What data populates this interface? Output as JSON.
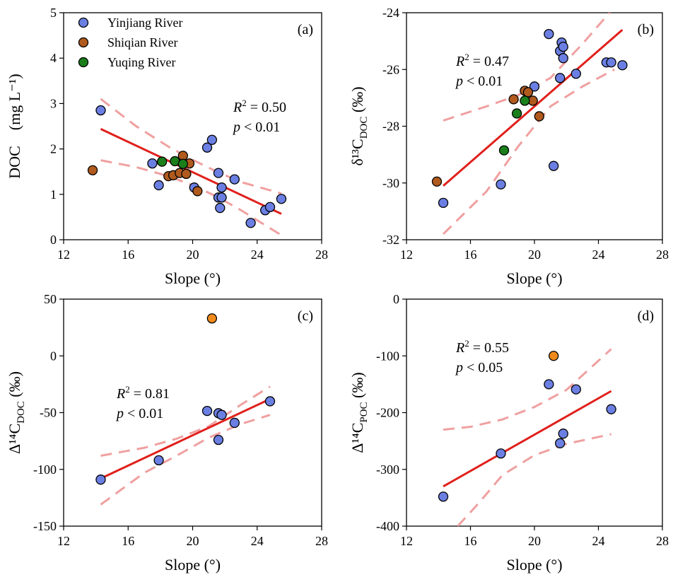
{
  "colors": {
    "yinjiang": "#6b7fe3",
    "shiqian": "#b05a1e",
    "yuqing": "#1a7f1a",
    "outlier": "#f08a1c",
    "fit": "#e0201c",
    "ci": "#f0a0a0"
  },
  "legend": [
    {
      "name": "Yinjiang River",
      "color": "#6b7fe3"
    },
    {
      "name": "Shiqian River",
      "color": "#b05a1e"
    },
    {
      "name": "Yuqing River",
      "color": "#1a7f1a"
    }
  ],
  "panels": [
    {
      "label": "(a)",
      "ylabel": "DOC　(mg L⁻¹)",
      "r2_text": "= 0.50",
      "p_text": "< 0.01",
      "ann_pos": "upper-right"
    },
    {
      "label": "(b)",
      "ylabel": "δ¹³C",
      "ylabel_sub": "DOC",
      "ylabel_unit": "(‰)",
      "r2_text": "= 0.47",
      "p_text": "< 0.01",
      "ann_pos": "upper-left"
    },
    {
      "label": "(c)",
      "ylabel": "Δ¹⁴C",
      "ylabel_sub": "DOC",
      "ylabel_unit": "(‰)",
      "r2_text": "= 0.81",
      "p_text": "< 0.01",
      "ann_pos": "middle-left"
    },
    {
      "label": "(d)",
      "ylabel": "Δ¹⁴C",
      "ylabel_sub": "POC",
      "ylabel_unit": "(‰)",
      "r2_text": "= 0.55",
      "p_text": "< 0.05",
      "ann_pos": "upper-left"
    }
  ],
  "chart_data": [
    {
      "type": "scatter",
      "panel": "(a)",
      "xlabel": "Slope (°)",
      "ylabel": "DOC (mg L-1)",
      "xlim": [
        12,
        28
      ],
      "ylim": [
        0,
        5
      ],
      "xticks": [
        12,
        16,
        20,
        24,
        28
      ],
      "yticks": [
        0,
        1,
        2,
        3,
        4,
        5
      ],
      "series": [
        {
          "name": "Yinjiang River",
          "color": "#6b7fe3",
          "x": [
            14.3,
            17.5,
            17.9,
            20.1,
            20.9,
            21.2,
            21.6,
            21.6,
            21.7,
            21.8,
            21.8,
            22.6,
            23.6,
            24.5,
            24.8,
            25.5
          ],
          "y": [
            2.85,
            1.68,
            1.2,
            1.15,
            2.03,
            2.2,
            1.47,
            0.93,
            0.7,
            1.15,
            0.93,
            1.33,
            0.37,
            0.65,
            0.72,
            0.9
          ]
        },
        {
          "name": "Shiqian River",
          "color": "#b05a1e",
          "x": [
            13.8,
            18.5,
            18.8,
            19.2,
            19.4,
            19.6,
            19.8,
            20.3
          ],
          "y": [
            1.53,
            1.4,
            1.42,
            1.47,
            1.85,
            1.45,
            1.68,
            1.07
          ]
        },
        {
          "name": "Yuqing River",
          "color": "#1a7f1a",
          "x": [
            18.1,
            18.9,
            19.4
          ],
          "y": [
            1.72,
            1.73,
            1.67
          ]
        }
      ],
      "fit": {
        "x": [
          14.3,
          25.5
        ],
        "y": [
          2.44,
          0.57
        ]
      },
      "ci_upper": {
        "x": [
          14.3,
          16.5,
          18.5,
          20,
          21.5,
          23,
          25.5
        ],
        "y": [
          3.1,
          2.5,
          2.05,
          1.76,
          1.5,
          1.27,
          1.02
        ]
      },
      "ci_lower": {
        "x": [
          14.3,
          16.5,
          18.5,
          20,
          21.5,
          23,
          25.5
        ],
        "y": [
          1.75,
          1.6,
          1.4,
          1.2,
          0.95,
          0.65,
          0.1
        ]
      },
      "r2": 0.5,
      "p": "< 0.01"
    },
    {
      "type": "scatter",
      "panel": "(b)",
      "xlabel": "Slope (°)",
      "ylabel": "δ13C DOC (‰)",
      "xlim": [
        12,
        28
      ],
      "ylim": [
        -32,
        -24
      ],
      "xticks": [
        12,
        16,
        20,
        24,
        28
      ],
      "yticks": [
        -32,
        -30,
        -28,
        -26,
        -24
      ],
      "series": [
        {
          "name": "Yinjiang River",
          "color": "#6b7fe3",
          "x": [
            14.3,
            17.9,
            20.0,
            20.9,
            21.2,
            21.6,
            21.6,
            21.7,
            21.8,
            21.8,
            22.6,
            24.5,
            24.8,
            25.5
          ],
          "y": [
            -30.7,
            -30.05,
            -26.6,
            -24.75,
            -29.4,
            -26.3,
            -25.35,
            -25.05,
            -25.6,
            -25.2,
            -26.15,
            -25.75,
            -25.75,
            -25.85
          ]
        },
        {
          "name": "Shiqian River",
          "color": "#b05a1e",
          "x": [
            13.9,
            18.7,
            19.4,
            19.6,
            19.9,
            20.3
          ],
          "y": [
            -29.95,
            -27.05,
            -26.75,
            -26.8,
            -27.1,
            -27.65
          ]
        },
        {
          "name": "Yuqing River",
          "color": "#1a7f1a",
          "x": [
            18.1,
            18.9,
            19.4
          ],
          "y": [
            -28.85,
            -27.55,
            -27.1
          ]
        }
      ],
      "fit": {
        "x": [
          14.3,
          25.5
        ],
        "y": [
          -30.1,
          -24.6
        ]
      },
      "ci_upper": {
        "x": [
          14.3,
          17,
          19,
          21,
          23,
          25
        ],
        "y": [
          -27.8,
          -27.3,
          -26.9,
          -26.3,
          -25.1,
          -23.8
        ]
      },
      "ci_lower": {
        "x": [
          14.3,
          17,
          19,
          21,
          23,
          25
        ],
        "y": [
          -31.8,
          -30.3,
          -28.7,
          -27.3,
          -26.6,
          -26.0
        ]
      },
      "r2": 0.47,
      "p": "< 0.01"
    },
    {
      "type": "scatter",
      "panel": "(c)",
      "xlabel": "Slope (°)",
      "ylabel": "Δ14C DOC (‰)",
      "xlim": [
        12,
        28
      ],
      "ylim": [
        -150,
        50
      ],
      "xticks": [
        12,
        16,
        20,
        24,
        28
      ],
      "yticks": [
        -150,
        -100,
        -50,
        0,
        50
      ],
      "series": [
        {
          "name": "Yinjiang River",
          "color": "#6b7fe3",
          "x": [
            14.3,
            17.9,
            20.9,
            21.6,
            21.6,
            21.8,
            22.6,
            24.8
          ],
          "y": [
            -109,
            -92,
            -48.5,
            -50.5,
            -74,
            -52,
            -59,
            -40
          ]
        },
        {
          "name": "Outlier",
          "color": "#f08a1c",
          "x": [
            21.2
          ],
          "y": [
            33
          ]
        }
      ],
      "fit": {
        "x": [
          14.3,
          24.8
        ],
        "y": [
          -108,
          -38
        ]
      },
      "ci_upper": {
        "x": [
          14.3,
          17,
          19,
          21,
          23,
          24.8
        ],
        "y": [
          -88,
          -81,
          -73,
          -62,
          -43,
          -27
        ]
      },
      "ci_lower": {
        "x": [
          14.3,
          17,
          19,
          21,
          23,
          24.8
        ],
        "y": [
          -131,
          -103,
          -88,
          -72,
          -60,
          -52
        ]
      },
      "r2": 0.81,
      "p": "< 0.01"
    },
    {
      "type": "scatter",
      "panel": "(d)",
      "xlabel": "Slope (°)",
      "ylabel": "Δ14C POC (‰)",
      "xlim": [
        12,
        28
      ],
      "ylim": [
        -400,
        0
      ],
      "xticks": [
        12,
        16,
        20,
        24,
        28
      ],
      "yticks": [
        -400,
        -300,
        -200,
        -100,
        0
      ],
      "series": [
        {
          "name": "Yinjiang River",
          "color": "#6b7fe3",
          "x": [
            14.3,
            17.9,
            20.9,
            21.6,
            21.8,
            22.6,
            24.8
          ],
          "y": [
            -348,
            -272,
            -150,
            -254,
            -237,
            -159,
            -194
          ]
        },
        {
          "name": "Outlier",
          "color": "#f08a1c",
          "x": [
            21.2
          ],
          "y": [
            -100
          ]
        }
      ],
      "fit": {
        "x": [
          14.3,
          24.8
        ],
        "y": [
          -330,
          -162
        ]
      },
      "ci_upper": {
        "x": [
          14.3,
          16,
          18,
          20,
          22,
          24.8
        ],
        "y": [
          -230,
          -225,
          -212,
          -190,
          -160,
          -88
        ]
      },
      "ci_lower": {
        "x": [
          15.2,
          16.5,
          18,
          20,
          22,
          24.8
        ],
        "y": [
          -400,
          -360,
          -310,
          -275,
          -255,
          -238
        ]
      },
      "r2": 0.55,
      "p": "< 0.05"
    }
  ]
}
